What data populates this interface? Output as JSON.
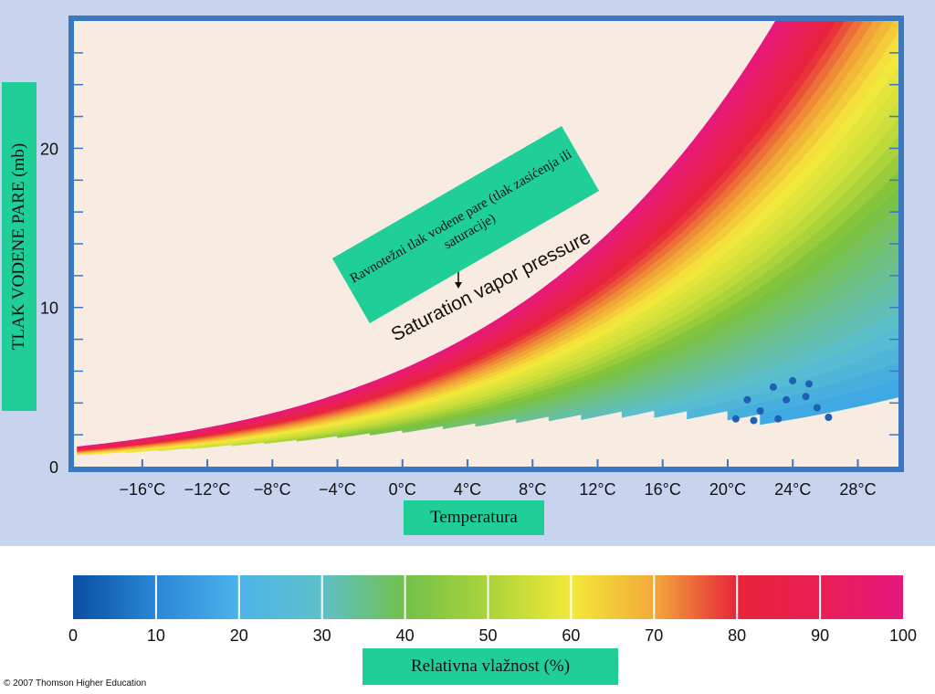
{
  "chart_data": {
    "type": "scatter",
    "title": "",
    "ylabel": "TLAK VODENE PARE (mb)",
    "xlabel": "Temperatura",
    "x_ticks": [
      -16,
      -12,
      -8,
      -4,
      0,
      4,
      8,
      12,
      16,
      20,
      24,
      28
    ],
    "x_tick_labels": [
      "−16°C",
      "−12°C",
      "−8°C",
      "−4°C",
      "0°C",
      "4°C",
      "8°C",
      "12°C",
      "16°C",
      "20°C",
      "24°C",
      "28°C"
    ],
    "y_ticks": [
      0,
      10,
      20
    ],
    "y_tick_labels": [
      "0",
      "10",
      "20"
    ],
    "xlim": [
      -20.2,
      30.5
    ],
    "ylim": [
      0,
      28
    ],
    "curve_name": "Saturation vapor pressure",
    "saturation_curve": {
      "x": [
        -20,
        -16,
        -12,
        -8,
        -4,
        0,
        4,
        8,
        12,
        16,
        20,
        24
      ],
      "y": [
        1.3,
        1.8,
        2.5,
        3.4,
        4.5,
        6.1,
        8.1,
        10.7,
        14.0,
        18.2,
        23.4,
        29.8
      ]
    },
    "scatter_points": {
      "x": [
        20.5,
        21.2,
        22.0,
        22.8,
        23.6,
        24.0,
        24.8,
        25.5,
        26.2,
        21.6,
        23.1,
        25.0
      ],
      "y": [
        3.0,
        4.2,
        3.5,
        5.0,
        4.2,
        5.4,
        4.4,
        3.7,
        3.1,
        2.9,
        3.0,
        5.2
      ],
      "color": "#1f5fb4"
    },
    "annotation": "Ravnotežni tlak vodene pare (tlak zasićenja ili saturacije)"
  },
  "colorbar": {
    "title": "Relativna vlažnost (%)",
    "ticks": [
      0,
      10,
      20,
      30,
      40,
      50,
      60,
      70,
      80,
      90,
      100
    ],
    "tick_labels": [
      "0",
      "10",
      "20",
      "30",
      "40",
      "50",
      "60",
      "70",
      "80",
      "90",
      "100"
    ],
    "colors": [
      "#0a4fa3",
      "#3aa6e6",
      "#5bbfd0",
      "#6cc08a",
      "#7cc23b",
      "#c7dd3a",
      "#f6e93a",
      "#f09a36",
      "#e8243a",
      "#ea1f5d",
      "#e5187e"
    ]
  },
  "copyright": "© 2007 Thomson Higher Education"
}
